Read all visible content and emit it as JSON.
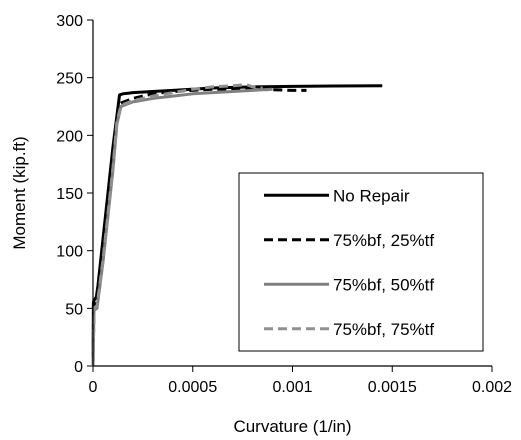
{
  "chart_data": {
    "type": "line",
    "title": "",
    "xlabel": "Curvature (1/in)",
    "ylabel": "Moment (kip.ft)",
    "xlim": [
      0,
      0.002
    ],
    "ylim": [
      0,
      300
    ],
    "x_ticks": [
      0,
      0.0005,
      0.001,
      0.0015,
      0.002
    ],
    "x_tick_labels": [
      "0",
      "0.0005",
      "0.001",
      "0.0015",
      "0.002"
    ],
    "y_ticks": [
      0,
      50,
      100,
      150,
      200,
      250,
      300
    ],
    "y_tick_labels": [
      "0",
      "50",
      "100",
      "150",
      "200",
      "250",
      "300"
    ],
    "grid": false,
    "legend": {
      "position": "center-right",
      "border": true
    },
    "series": [
      {
        "name": "No Repair",
        "color": "#000000",
        "dash": "solid",
        "x": [
          0,
          2e-06,
          5e-06,
          1e-05,
          1.7e-05,
          2.5e-05,
          5e-05,
          0.0001,
          0.000133,
          0.00015,
          0.0002,
          0.0003,
          0.0004,
          0.0006,
          0.0008,
          0.001,
          0.0012,
          0.00145
        ],
        "y": [
          0,
          55,
          57,
          58,
          60,
          70,
          110,
          190,
          235,
          236,
          237,
          238,
          239,
          241,
          242,
          242.5,
          242.8,
          243
        ]
      },
      {
        "name": "75%bf, 25%tf",
        "color": "#000000",
        "dash": "dashed",
        "x": [
          0,
          5e-06,
          1e-05,
          2e-05,
          5e-05,
          0.0001,
          0.00013,
          0.00014,
          0.0002,
          0.0003,
          0.0004,
          0.0005,
          0.0006,
          0.0008,
          0.001,
          0.00107
        ],
        "y": [
          0,
          52,
          53,
          55,
          100,
          185,
          226,
          228,
          232,
          236,
          238,
          239,
          240,
          240,
          239,
          239
        ]
      },
      {
        "name": "75%bf, 50%tf",
        "color": "#808080",
        "dash": "solid",
        "x": [
          0,
          5e-06,
          1e-05,
          2e-05,
          5e-05,
          0.0001,
          0.00012,
          0.00014,
          0.0002,
          0.0003,
          0.0004,
          0.0005,
          0.0006,
          0.0007,
          0.0008,
          0.0009
        ],
        "y": [
          0,
          48,
          49,
          50,
          90,
          170,
          210,
          225,
          229,
          232,
          234,
          236,
          237,
          238,
          239,
          240
        ]
      },
      {
        "name": "75%bf, 75%tf",
        "color": "#909090",
        "dash": "dashed",
        "x": [
          0,
          5e-06,
          1e-05,
          2e-05,
          5e-05,
          0.0001,
          0.00012,
          0.00014,
          0.0002,
          0.0003,
          0.0004,
          0.0005,
          0.0006,
          0.0007,
          0.00077,
          0.0008,
          0.00085
        ],
        "y": [
          0,
          50,
          51,
          52,
          92,
          172,
          212,
          226,
          230,
          234,
          237,
          240,
          242,
          243,
          244,
          242,
          241
        ]
      }
    ]
  }
}
